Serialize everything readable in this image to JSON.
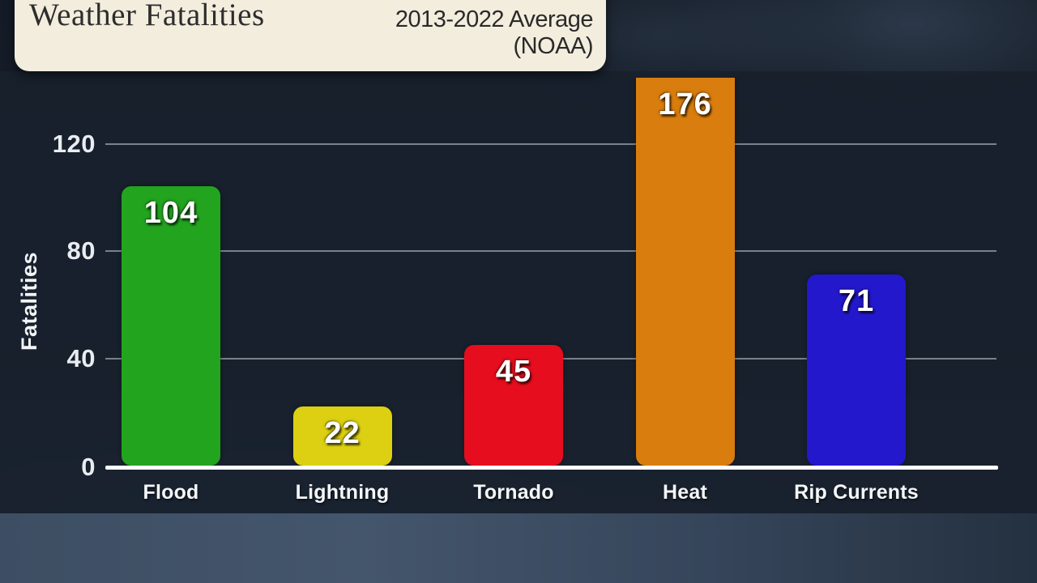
{
  "title_card": {
    "title": "Weather Fatalities",
    "subtitle": "2013-2022 Average\n(NOAA)"
  },
  "chart_data": {
    "type": "bar",
    "title": "Weather Fatalities",
    "subtitle": "2013-2022 Average (NOAA)",
    "source": "NOAA",
    "categories": [
      "Flood",
      "Lightning",
      "Tornado",
      "Heat",
      "Rip Currents"
    ],
    "values": [
      104,
      22,
      45,
      176,
      71
    ],
    "bar_colors": [
      "#22a41f",
      "#ddd012",
      "#e60d1e",
      "#d97d0e",
      "#2318cc"
    ],
    "xlabel": "",
    "ylabel": "Fatalities",
    "yticks": [
      0,
      40,
      80,
      120
    ],
    "ylim": [
      0,
      145
    ],
    "grid": true,
    "legend_position": "none",
    "note": "Heat bar exceeds visible axis range and is clipped at top of plot"
  }
}
